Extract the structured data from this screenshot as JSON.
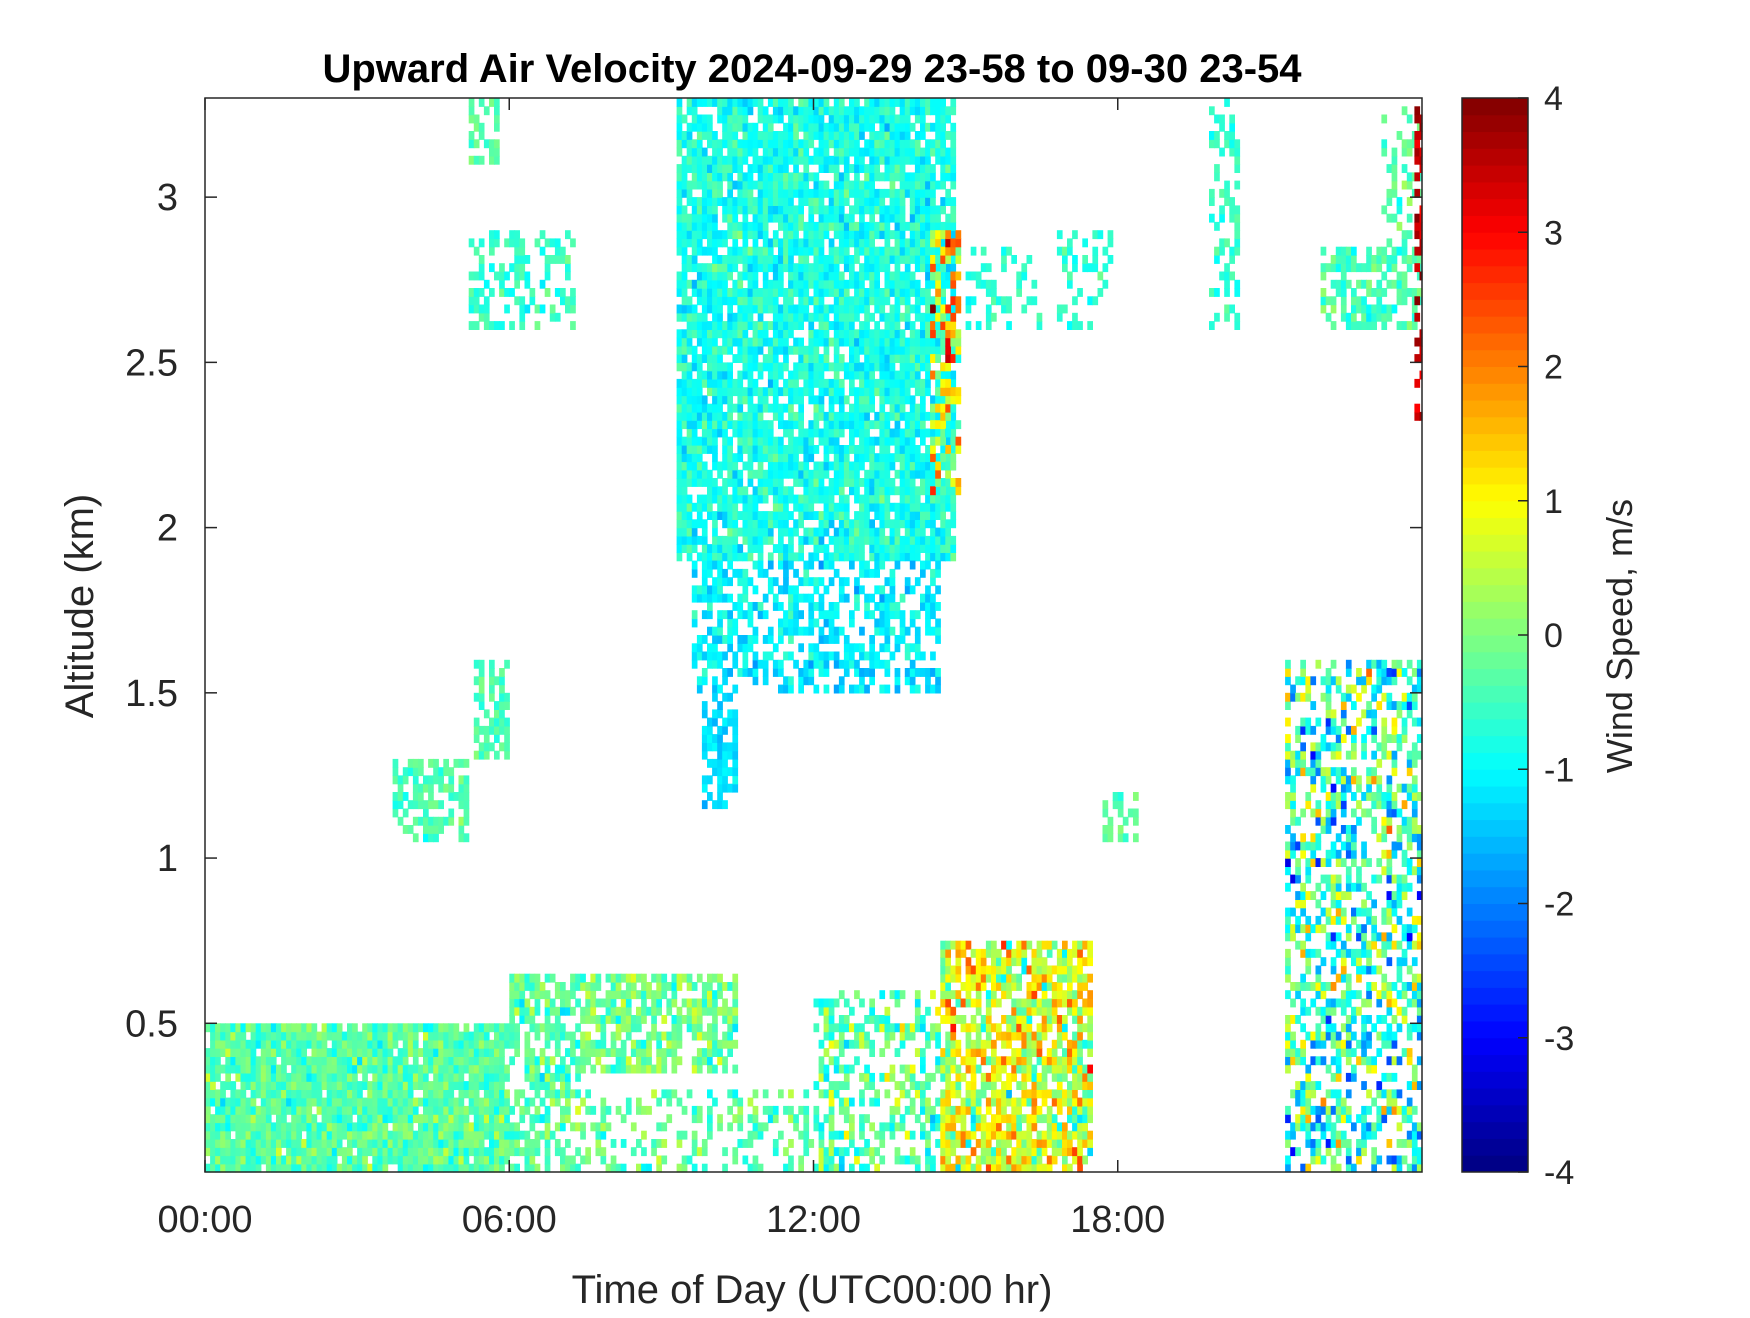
{
  "chart_data": {
    "type": "heatmap",
    "title": "Upward Air Velocity 2024-09-29 23-58 to 09-30 23-54",
    "xlabel": "Time of Day (UTC00:00 hr)",
    "ylabel": "Altitude (km)",
    "colorbar_label": "Wind Speed, m/s",
    "colormap": "jet",
    "x_unit": "hours",
    "xlim": [
      0,
      24
    ],
    "ylim": [
      0.05,
      3.3
    ],
    "clim": [
      -4,
      4
    ],
    "x_ticks": [
      0,
      6,
      12,
      18
    ],
    "x_tick_labels": [
      "00:00",
      "06:00",
      "12:00",
      "18:00"
    ],
    "y_ticks": [
      0.5,
      1,
      1.5,
      2,
      2.5,
      3
    ],
    "y_tick_labels": [
      "0.5",
      "1",
      "1.5",
      "2",
      "2.5",
      "3"
    ],
    "colorbar_ticks": [
      -4,
      -3,
      -2,
      -1,
      0,
      1,
      2,
      3,
      4
    ],
    "colorbar_tick_labels": [
      "-4",
      "-3",
      "-2",
      "-1",
      "0",
      "1",
      "2",
      "3",
      "4"
    ],
    "grid": false,
    "regions": [
      {
        "t0": 0.0,
        "t1": 6.0,
        "z0": 0.05,
        "z1": 0.5,
        "mean": -0.3,
        "spread": 0.7,
        "density": 0.93
      },
      {
        "t0": 6.0,
        "t1": 7.5,
        "z0": 0.05,
        "z1": 0.65,
        "mean": -0.3,
        "spread": 0.8,
        "density": 0.65
      },
      {
        "t0": 7.5,
        "t1": 10.5,
        "z0": 0.35,
        "z1": 0.65,
        "mean": -0.1,
        "spread": 0.8,
        "density": 0.7
      },
      {
        "t0": 7.5,
        "t1": 12.0,
        "z0": 0.05,
        "z1": 0.3,
        "mean": -0.3,
        "spread": 0.8,
        "density": 0.35
      },
      {
        "t0": 12.0,
        "t1": 14.5,
        "z0": 0.05,
        "z1": 0.6,
        "mean": -0.3,
        "spread": 1.2,
        "density": 0.5
      },
      {
        "t0": 14.5,
        "t1": 17.5,
        "z0": 0.05,
        "z1": 0.75,
        "mean": 0.7,
        "spread": 1.6,
        "density": 0.8
      },
      {
        "t0": 21.3,
        "t1": 24.0,
        "z0": 0.05,
        "z1": 1.6,
        "mean": -0.5,
        "spread": 2.0,
        "density": 0.55
      },
      {
        "t0": 9.3,
        "t1": 14.8,
        "z0": 1.9,
        "z1": 3.3,
        "mean": -0.8,
        "spread": 0.6,
        "density": 0.85
      },
      {
        "t0": 9.6,
        "t1": 14.5,
        "z0": 1.5,
        "z1": 1.9,
        "mean": -1.1,
        "spread": 0.6,
        "density": 0.55
      },
      {
        "t0": 9.8,
        "t1": 10.5,
        "z0": 1.15,
        "z1": 1.5,
        "mean": -1.2,
        "spread": 0.4,
        "density": 0.75
      },
      {
        "t0": 14.3,
        "t1": 14.9,
        "z0": 2.1,
        "z1": 2.9,
        "mean": 1.0,
        "spread": 2.4,
        "density": 0.6
      },
      {
        "t0": 3.7,
        "t1": 5.2,
        "z0": 1.05,
        "z1": 1.3,
        "mean": -0.4,
        "spread": 0.4,
        "density": 0.6
      },
      {
        "t0": 5.3,
        "t1": 6.0,
        "z0": 1.3,
        "z1": 1.6,
        "mean": -0.4,
        "spread": 0.4,
        "density": 0.6
      },
      {
        "t0": 5.2,
        "t1": 7.3,
        "z0": 2.6,
        "z1": 2.9,
        "mean": -0.6,
        "spread": 0.5,
        "density": 0.45
      },
      {
        "t0": 5.2,
        "t1": 5.8,
        "z0": 3.1,
        "z1": 3.3,
        "mean": -0.3,
        "spread": 0.4,
        "density": 0.6
      },
      {
        "t0": 15.0,
        "t1": 16.5,
        "z0": 2.6,
        "z1": 2.85,
        "mean": -0.7,
        "spread": 0.4,
        "density": 0.35
      },
      {
        "t0": 16.8,
        "t1": 17.9,
        "z0": 2.6,
        "z1": 2.9,
        "mean": -0.7,
        "spread": 0.5,
        "density": 0.3
      },
      {
        "t0": 17.7,
        "t1": 18.4,
        "z0": 1.05,
        "z1": 1.2,
        "mean": -0.3,
        "spread": 0.4,
        "density": 0.5
      },
      {
        "t0": 19.8,
        "t1": 20.4,
        "z0": 2.6,
        "z1": 3.3,
        "mean": -0.6,
        "spread": 0.4,
        "density": 0.45
      },
      {
        "t0": 22.0,
        "t1": 24.0,
        "z0": 2.6,
        "z1": 2.85,
        "mean": -0.4,
        "spread": 0.6,
        "density": 0.6
      },
      {
        "t0": 23.2,
        "t1": 24.0,
        "z0": 2.85,
        "z1": 3.3,
        "mean": -0.3,
        "spread": 0.6,
        "density": 0.35
      },
      {
        "t0": 23.85,
        "t1": 24.0,
        "z0": 2.3,
        "z1": 3.3,
        "mean": 3.5,
        "spread": 0.5,
        "density": 0.5
      }
    ]
  }
}
